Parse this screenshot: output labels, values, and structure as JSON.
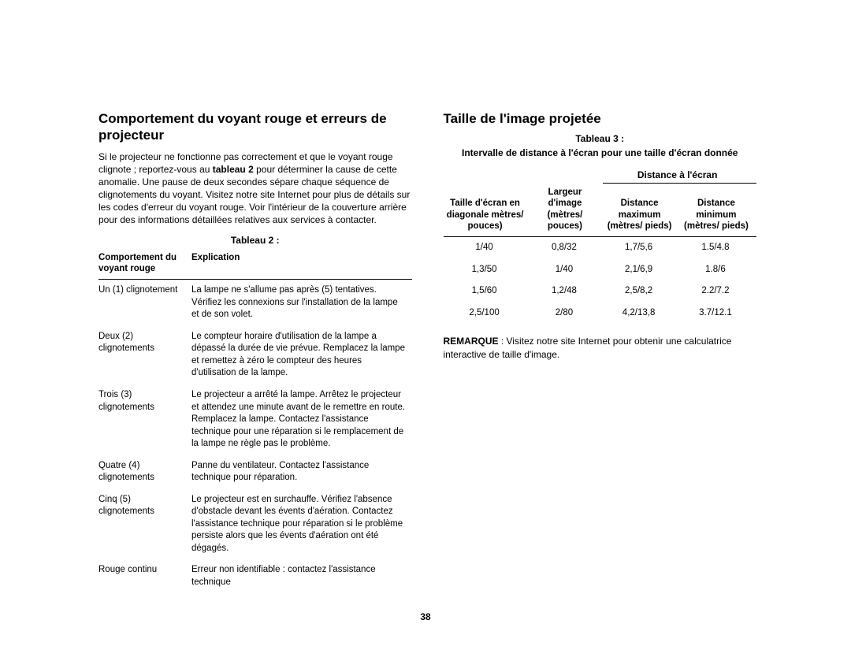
{
  "page_number": "38",
  "left": {
    "heading": "Comportement du voyant rouge et erreurs de projecteur",
    "intro_pre": "Si le projecteur ne fonctionne pas correctement et que le voyant rouge clignote ; reportez-vous au ",
    "intro_bold": "tableau 2",
    "intro_post": " pour déterminer la cause de cette anomalie. Une pause de deux secondes sépare chaque séquence de clignotements du voyant. Visitez notre site Internet pour plus de détails sur les codes d'erreur du voyant rouge. Voir l'intérieur de la couverture arrière pour des informations détaillées relatives aux services à contacter.",
    "table_caption": "Tableau 2 :",
    "col1_header": "Comportement du voyant rouge",
    "col2_header": "Explication",
    "rows": [
      {
        "b": "Un (1) clignotement",
        "e": "La lampe ne s'allume pas après (5) tentatives. Vérifiez les connexions sur l'installation de la lampe et de son volet."
      },
      {
        "b": "Deux (2) clignotements",
        "e": "Le compteur horaire d'utilisation de la lampe a dépassé la durée de vie prévue. Remplacez la lampe et remettez à zéro le compteur des heures d'utilisation de la lampe."
      },
      {
        "b": "Trois (3) clignotements",
        "e": "Le projecteur a arrêté la lampe. Arrêtez le projecteur et attendez une minute avant de le remettre en route. Remplacez la lampe. Contactez l'assistance technique pour une réparation si le remplacement de la lampe ne règle pas le problème."
      },
      {
        "b": "Quatre (4) clignotements",
        "e": "Panne du ventilateur. Contactez l'assistance technique pour réparation."
      },
      {
        "b": "Cinq (5) clignotements",
        "e": "Le projecteur est en surchauffe. Vérifiez l'absence d'obstacle devant les évents d'aération. Contactez l'assistance technique pour réparation si le problème persiste alors que les évents d'aération ont été dégagés."
      },
      {
        "b": "Rouge continu",
        "e": "Erreur non identifiable : contactez l'assistance technique"
      }
    ]
  },
  "right": {
    "heading": "Taille de l'image projetée",
    "table_caption": "Tableau 3 :",
    "table_subcaption": "Intervalle de distance à l'écran pour une taille d'écran donnée",
    "span_header": "Distance à l'écran",
    "h1": "Taille d'écran en diagonale mètres/ pouces)",
    "h2": "Largeur d'image (mètres/ pouces)",
    "h3": "Distance maximum (mètres/ pieds)",
    "h4": "Distance minimum (mètres/ pieds)",
    "rows": [
      {
        "c1": "1/40",
        "c2": "0,8/32",
        "c3": "1,7/5,6",
        "c4": "1.5/4.8"
      },
      {
        "c1": "1,3/50",
        "c2": "1/40",
        "c3": "2,1/6,9",
        "c4": "1.8/6"
      },
      {
        "c1": "1,5/60",
        "c2": "1,2/48",
        "c3": "2,5/8,2",
        "c4": "2.2/7.2"
      },
      {
        "c1": "2,5/100",
        "c2": "2/80",
        "c3": "4,2/13,8",
        "c4": "3.7/12.1"
      }
    ],
    "note_bold": "REMARQUE",
    "note_rest": " : Visitez notre site Internet pour obtenir une calculatrice interactive de taille d'image."
  }
}
